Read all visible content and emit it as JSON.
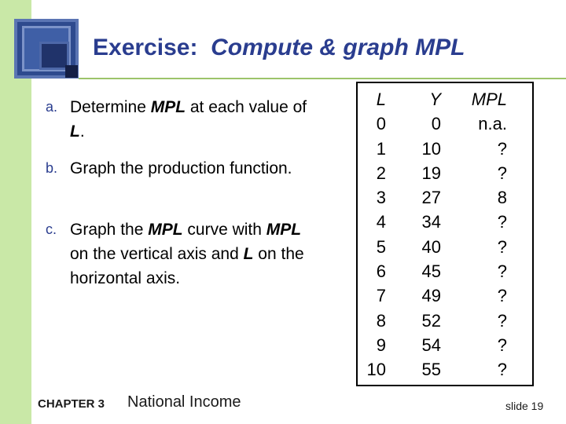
{
  "title": {
    "part1": "Exercise:",
    "part2": "Compute & graph MPL"
  },
  "items": [
    {
      "label": "a.",
      "pre": "Determine ",
      "em": "MPL",
      "post": " at each value of ",
      "em2": "L",
      "post2": "."
    },
    {
      "label": "b.",
      "text": "Graph the production function."
    },
    {
      "label": "c.",
      "pre": "Graph the ",
      "em": "MPL",
      "mid": " curve with ",
      "em2": "MPL",
      "mid2": " on the vertical axis and ",
      "em3": "L",
      "post": " on the horizontal axis."
    }
  ],
  "table": {
    "headers": {
      "l": "L",
      "y": "Y",
      "mpl": "MPL"
    },
    "rows": [
      {
        "l": "0",
        "y": "0",
        "mpl": "n.a."
      },
      {
        "l": "1",
        "y": "10",
        "mpl": "?"
      },
      {
        "l": "2",
        "y": "19",
        "mpl": "?"
      },
      {
        "l": "3",
        "y": "27",
        "mpl": "8"
      },
      {
        "l": "4",
        "y": "34",
        "mpl": "?"
      },
      {
        "l": "5",
        "y": "40",
        "mpl": "?"
      },
      {
        "l": "6",
        "y": "45",
        "mpl": "?"
      },
      {
        "l": "7",
        "y": "49",
        "mpl": "?"
      },
      {
        "l": "8",
        "y": "52",
        "mpl": "?"
      },
      {
        "l": "9",
        "y": "54",
        "mpl": "?"
      },
      {
        "l": "10",
        "y": "55",
        "mpl": "?"
      }
    ]
  },
  "footer": {
    "chapter": "CHAPTER 3",
    "title": "National Income",
    "slide": "slide 19"
  },
  "colors": {
    "accent": "#2a3d8f",
    "sidebar": "#c9e8a7",
    "rule": "#9cc46a"
  }
}
